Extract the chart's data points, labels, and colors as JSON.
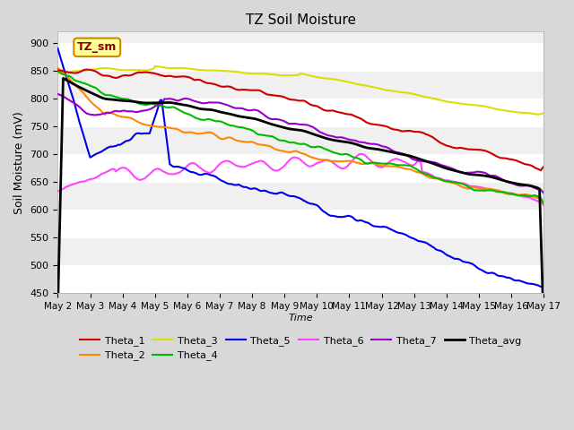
{
  "title": "TZ Soil Moisture",
  "xlabel": "Time",
  "ylabel": "Soil Moisture (mV)",
  "ylim": [
    450,
    920
  ],
  "yticks": [
    450,
    500,
    550,
    600,
    650,
    700,
    750,
    800,
    850,
    900
  ],
  "x_labels": [
    "May 2",
    "May 3",
    "May 4",
    "May 5",
    "May 6",
    "May 7",
    "May 8",
    "May 9",
    "May 10",
    "May 11",
    "May 12",
    "May 13",
    "May 14",
    "May 15",
    "May 16",
    "May 17"
  ],
  "legend_label": "TZ_sm",
  "series": {
    "Theta_1": {
      "color": "#cc0000",
      "lw": 1.5
    },
    "Theta_2": {
      "color": "#ff8800",
      "lw": 1.5
    },
    "Theta_3": {
      "color": "#dddd00",
      "lw": 1.5
    },
    "Theta_4": {
      "color": "#00bb00",
      "lw": 1.5
    },
    "Theta_5": {
      "color": "#0000ee",
      "lw": 1.5
    },
    "Theta_6": {
      "color": "#ff44ff",
      "lw": 1.5
    },
    "Theta_7": {
      "color": "#9900cc",
      "lw": 1.5
    },
    "Theta_avg": {
      "color": "#000000",
      "lw": 2.0
    }
  },
  "bg_color": "#d8d8d8",
  "plot_bg_color": "#f0f0f0",
  "grid_color": "#ffffff",
  "n_points": 361
}
